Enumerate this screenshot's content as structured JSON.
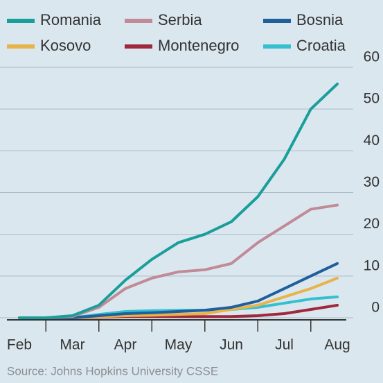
{
  "chart_data": {
    "type": "line",
    "source": "Source: Johns Hopkins University CSSE",
    "categories": [
      "Feb",
      null,
      "Mar",
      null,
      "Apr",
      null,
      "May",
      null,
      "Jun",
      null,
      "Jul",
      null,
      "Aug"
    ],
    "series": [
      {
        "name": "Romania",
        "color": "#1a9e9a",
        "values": [
          0,
          0,
          0.5,
          3,
          9,
          14,
          18,
          20,
          23,
          29,
          38,
          50,
          56
        ]
      },
      {
        "name": "Serbia",
        "color": "#c08a96",
        "values": [
          0,
          0,
          0.3,
          2.5,
          7,
          9.5,
          11,
          11.5,
          13,
          18,
          22,
          26,
          27
        ]
      },
      {
        "name": "Bosnia",
        "color": "#1f5f9c",
        "values": [
          0,
          0,
          0,
          0.5,
          1,
          1.2,
          1.5,
          1.8,
          2.5,
          4,
          7,
          10,
          13
        ]
      },
      {
        "name": "Kosovo",
        "color": "#e8b34a",
        "values": [
          0,
          0,
          0,
          0.2,
          0.5,
          0.6,
          0.8,
          1,
          2,
          3,
          5,
          7,
          9.5
        ]
      },
      {
        "name": "Montenegro",
        "color": "#a0283c",
        "values": [
          0,
          0,
          0,
          0.1,
          0.3,
          0.3,
          0.3,
          0.3,
          0.3,
          0.5,
          1,
          2,
          3
        ]
      },
      {
        "name": "Croatia",
        "color": "#35c0cf",
        "values": [
          0,
          0,
          0,
          0.8,
          1.5,
          1.7,
          1.8,
          1.8,
          2,
          2.5,
          3.5,
          4.5,
          5
        ]
      }
    ],
    "ylim": [
      0,
      60
    ],
    "yticks": [
      0,
      10,
      20,
      30,
      40,
      50,
      60
    ],
    "grid": true
  }
}
